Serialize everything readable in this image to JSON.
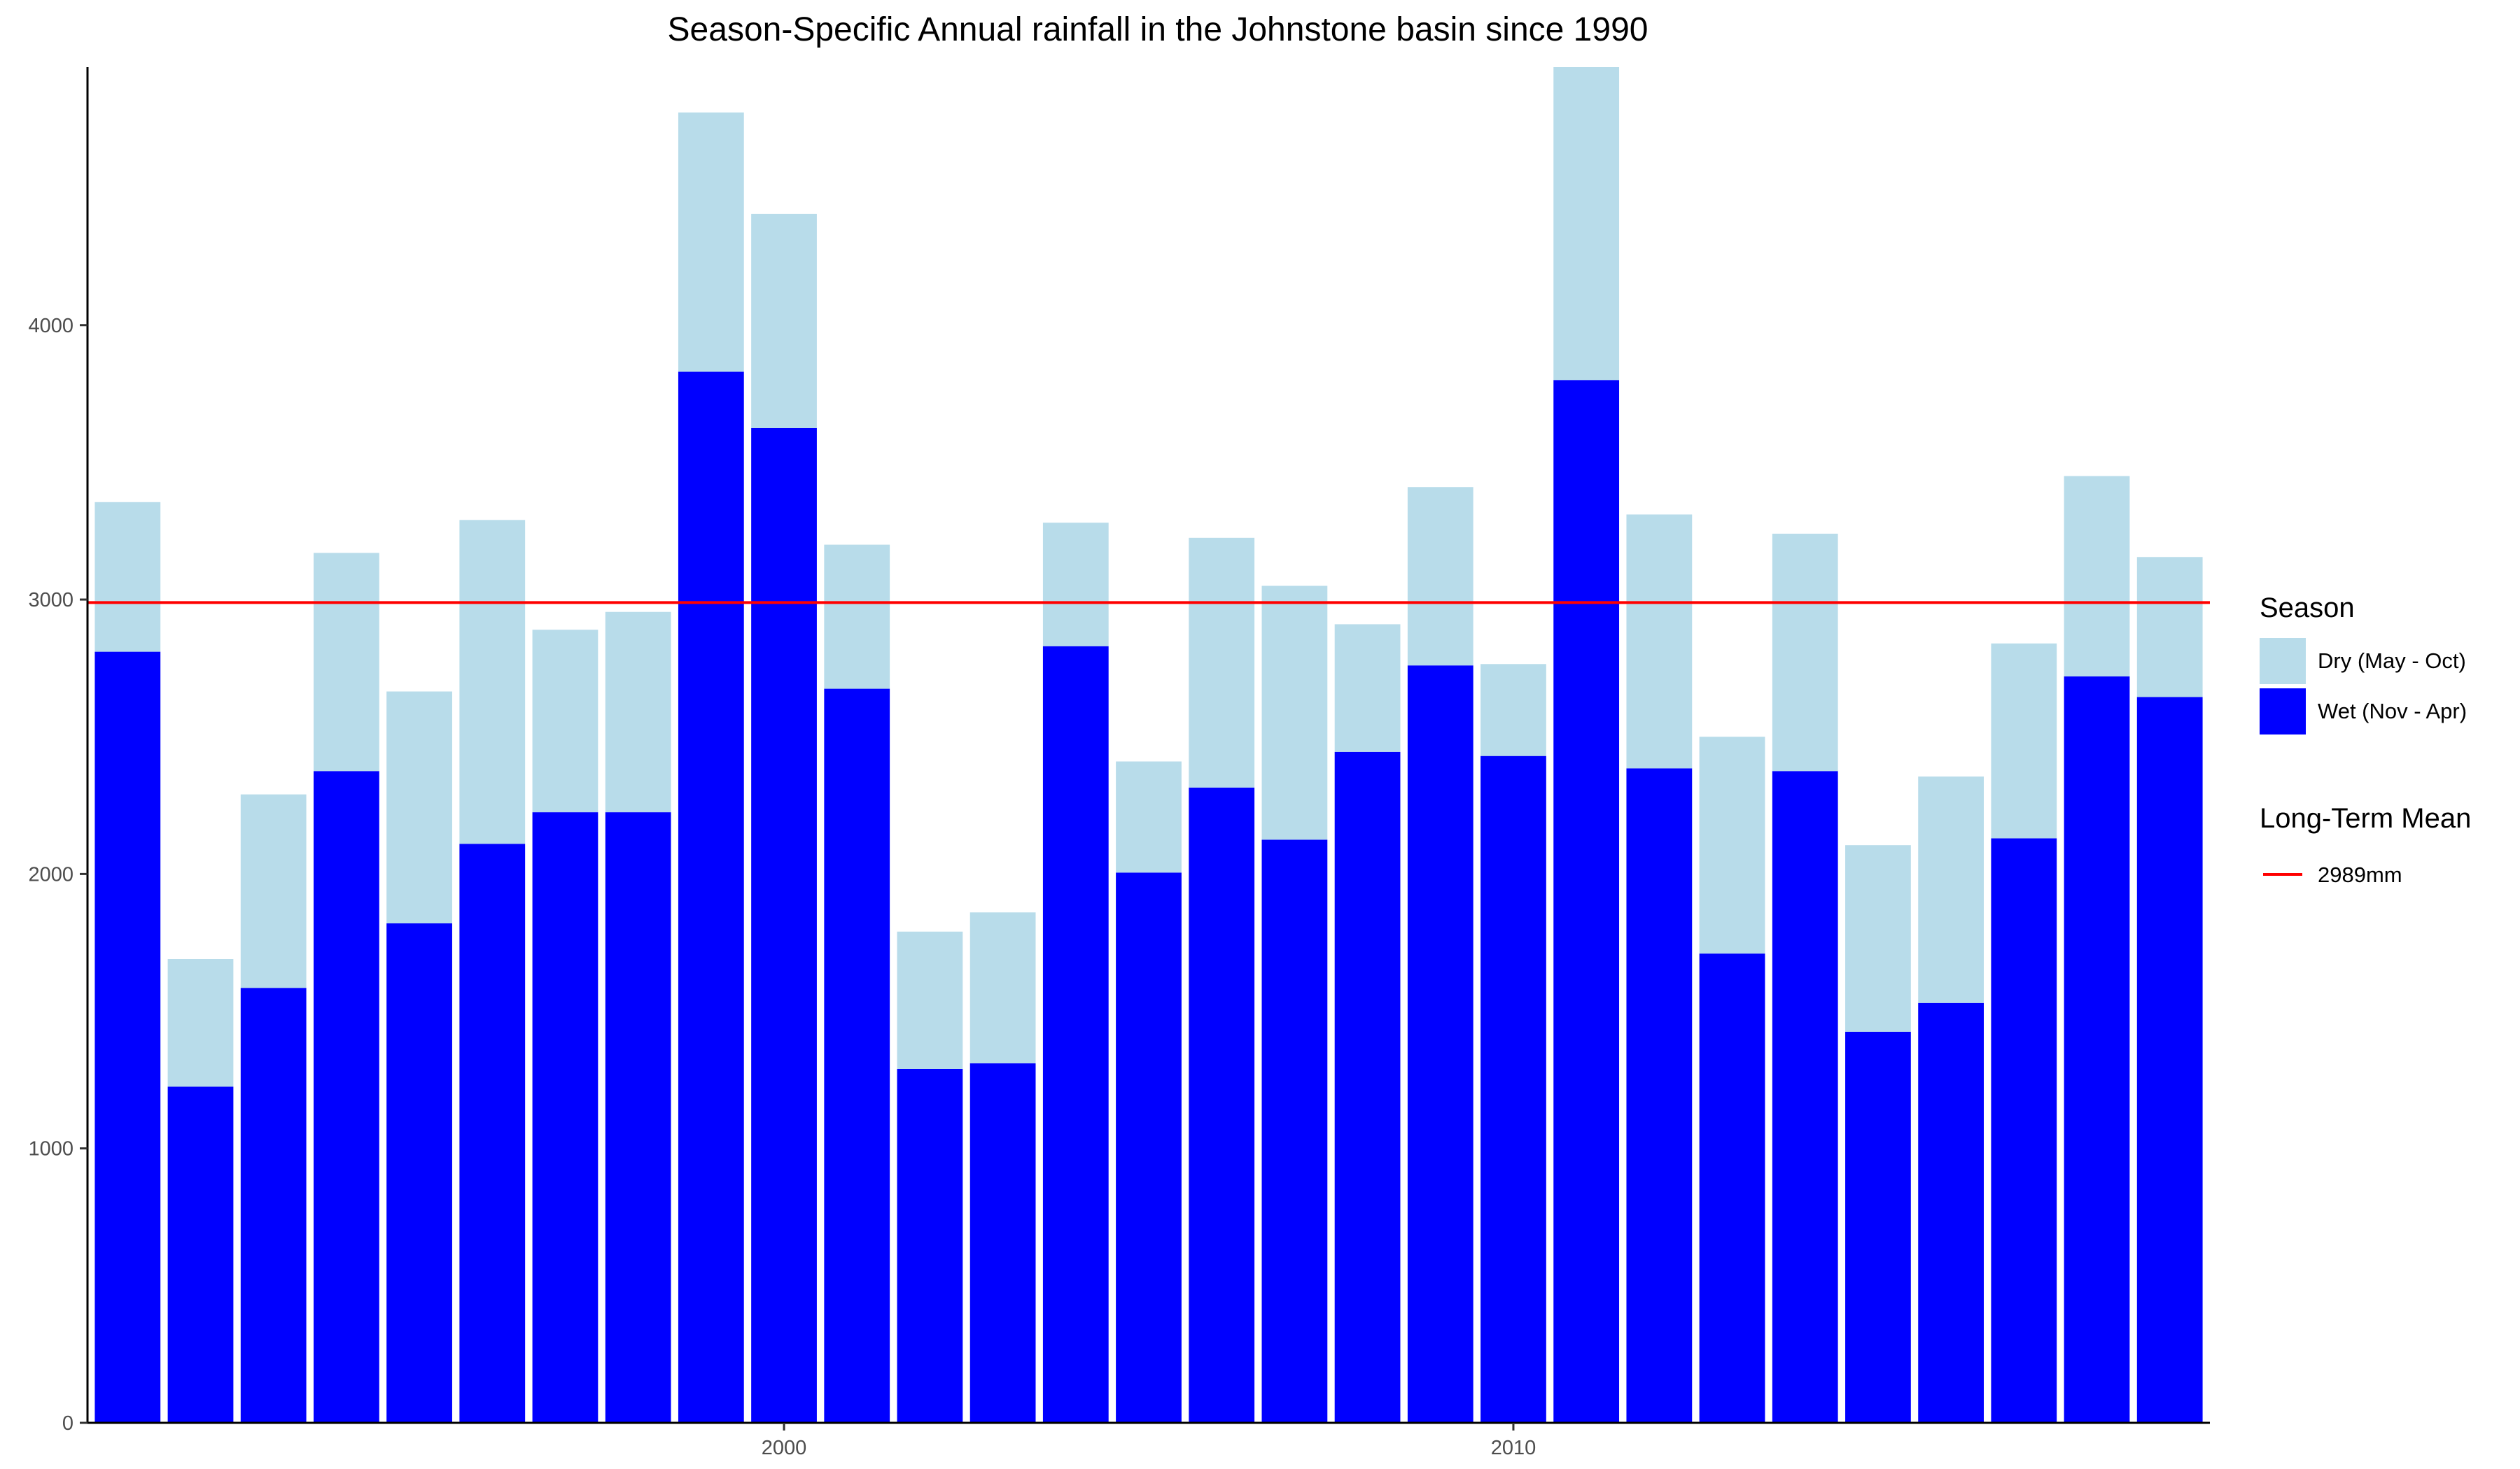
{
  "chart_data": {
    "type": "bar",
    "stacked": true,
    "title": "Season-Specific Annual rainfall in the Johnstone basin since 1990",
    "xlabel": "",
    "ylabel": "",
    "x_tick_labels": [
      {
        "value": 2000,
        "label": "2000"
      },
      {
        "value": 2010,
        "label": "2010"
      }
    ],
    "y_tick_labels": [
      {
        "value": 0,
        "label": "0"
      },
      {
        "value": 1000,
        "label": "1000"
      },
      {
        "value": 2000,
        "label": "2000"
      },
      {
        "value": 3000,
        "label": "3000"
      },
      {
        "value": 4000,
        "label": "4000"
      }
    ],
    "xlim": [
      1990.45,
      2019.55
    ],
    "ylim": [
      0,
      4940
    ],
    "grid": false,
    "legend_position": "right",
    "categories": [
      1991,
      1992,
      1993,
      1994,
      1995,
      1996,
      1997,
      1998,
      1999,
      2000,
      2001,
      2002,
      2003,
      2004,
      2005,
      2006,
      2007,
      2008,
      2009,
      2010,
      2011,
      2012,
      2013,
      2014,
      2015,
      2016,
      2017,
      2018,
      2019
    ],
    "series": [
      {
        "name": "Wet (Nov - Apr)",
        "color": "#0000FF",
        "values": [
          2810,
          1225,
          1585,
          2375,
          1820,
          2110,
          2225,
          2225,
          3830,
          3625,
          2675,
          1290,
          1310,
          2830,
          2005,
          2315,
          2125,
          2445,
          2760,
          2430,
          3800,
          2385,
          1710,
          2375,
          1425,
          1530,
          2130,
          2720,
          2645
        ]
      },
      {
        "name": "Dry (May - Oct)",
        "color": "#B8DCEA",
        "values": [
          545,
          465,
          705,
          795,
          845,
          1180,
          665,
          730,
          945,
          780,
          525,
          500,
          550,
          450,
          405,
          910,
          925,
          465,
          650,
          335,
          1140,
          925,
          790,
          865,
          680,
          825,
          710,
          730,
          510
        ]
      }
    ],
    "reference_line": {
      "value": 2989,
      "color": "#FF0000",
      "legend_title": "Long-Term Mean",
      "label": "2989mm"
    },
    "legend": {
      "season_title": "Season",
      "entries": [
        {
          "label": "Dry (May - Oct)",
          "color": "#B8DCEA"
        },
        {
          "label": "Wet (Nov - Apr)",
          "color": "#0000FF"
        }
      ]
    }
  }
}
